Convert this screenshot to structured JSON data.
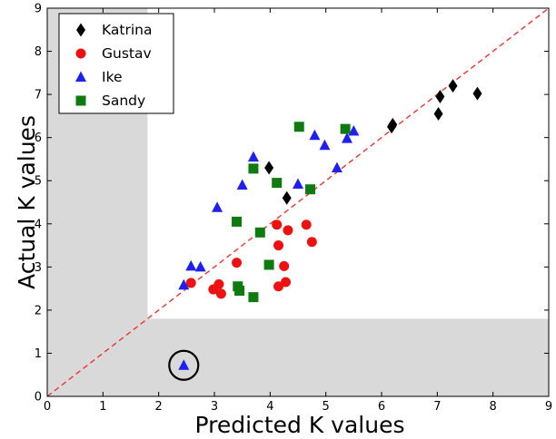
{
  "chart_data": {
    "type": "scatter",
    "title": "",
    "xlabel": "Predicted K values",
    "ylabel": "Actual K values",
    "xlim": [
      0,
      9
    ],
    "ylim": [
      0,
      9
    ],
    "xticks": [
      "0",
      "1",
      "2",
      "3",
      "4",
      "5",
      "6",
      "7",
      "8",
      "9"
    ],
    "yticks": [
      "0",
      "1",
      "2",
      "3",
      "4",
      "5",
      "6",
      "7",
      "8",
      "9"
    ],
    "grid": false,
    "legend_position": "top-left",
    "shaded_regions": [
      {
        "x": [
          0,
          1.8
        ],
        "y": [
          0,
          9
        ],
        "color": "#d9d9d9"
      },
      {
        "x": [
          0,
          9
        ],
        "y": [
          0,
          1.8
        ],
        "color": "#d9d9d9"
      }
    ],
    "reference_line": {
      "from": [
        0,
        0
      ],
      "to": [
        9,
        9
      ],
      "style": "dashed",
      "color": "#ee3333"
    },
    "highlight_circle": {
      "series": "Ike",
      "x": 2.45,
      "y": 0.72
    },
    "series": [
      {
        "name": "Katrina",
        "marker": "diamond",
        "color": "#000000",
        "points": [
          [
            3.98,
            5.3
          ],
          [
            4.3,
            4.6
          ],
          [
            6.18,
            6.25
          ],
          [
            6.2,
            6.3
          ],
          [
            7.02,
            6.55
          ],
          [
            7.05,
            6.95
          ],
          [
            7.28,
            7.2
          ],
          [
            7.72,
            7.02
          ]
        ]
      },
      {
        "name": "Gustav",
        "marker": "circle",
        "color": "#ee1111",
        "points": [
          [
            2.58,
            2.63
          ],
          [
            2.98,
            2.48
          ],
          [
            3.08,
            2.6
          ],
          [
            3.12,
            2.38
          ],
          [
            3.4,
            3.1
          ],
          [
            4.12,
            3.98
          ],
          [
            4.15,
            3.5
          ],
          [
            4.32,
            3.85
          ],
          [
            4.25,
            3.02
          ],
          [
            4.15,
            2.55
          ],
          [
            4.28,
            2.65
          ],
          [
            4.65,
            3.98
          ],
          [
            4.75,
            3.58
          ]
        ]
      },
      {
        "name": "Ike",
        "marker": "triangle",
        "color": "#1f1fee",
        "points": [
          [
            2.45,
            0.72
          ],
          [
            2.45,
            2.58
          ],
          [
            2.58,
            3.02
          ],
          [
            2.75,
            3.0
          ],
          [
            3.05,
            4.38
          ],
          [
            3.5,
            4.9
          ],
          [
            3.7,
            5.55
          ],
          [
            4.5,
            4.92
          ],
          [
            4.8,
            6.05
          ],
          [
            4.98,
            5.82
          ],
          [
            5.2,
            5.3
          ],
          [
            5.38,
            5.98
          ],
          [
            5.5,
            6.15
          ]
        ]
      },
      {
        "name": "Sandy",
        "marker": "square",
        "color": "#0f7a0f",
        "points": [
          [
            3.4,
            4.05
          ],
          [
            3.42,
            2.55
          ],
          [
            3.45,
            2.45
          ],
          [
            3.7,
            5.28
          ],
          [
            3.7,
            2.3
          ],
          [
            3.82,
            3.8
          ],
          [
            3.98,
            3.05
          ],
          [
            4.12,
            4.95
          ],
          [
            4.52,
            6.25
          ],
          [
            4.72,
            4.8
          ],
          [
            5.35,
            6.2
          ]
        ]
      }
    ]
  }
}
